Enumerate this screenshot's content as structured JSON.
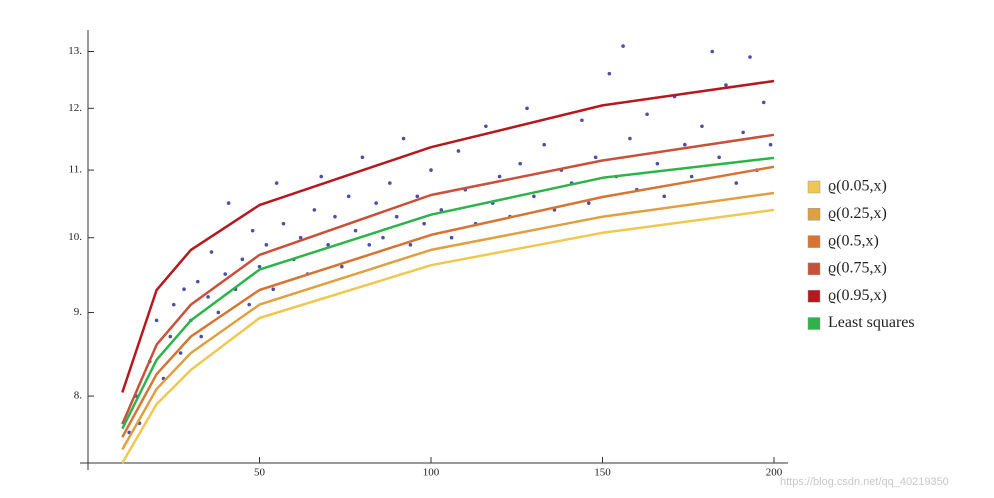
{
  "chart_data": {
    "type": "scatter",
    "log_y": true,
    "xlim": [
      0,
      200
    ],
    "ylim": [
      7.28,
      13.4
    ],
    "xticks": [
      50,
      100,
      150,
      200
    ],
    "yticks": [
      {
        "value": 8,
        "label": "8."
      },
      {
        "value": 9,
        "label": "9."
      },
      {
        "value": 10,
        "label": "10."
      },
      {
        "value": 11,
        "label": "11."
      },
      {
        "value": 12,
        "label": "12."
      },
      {
        "value": 13,
        "label": "13."
      }
    ],
    "points": {
      "color": "#4b4fa8",
      "x": [
        12,
        14,
        15,
        18,
        20,
        22,
        24,
        25,
        27,
        28,
        30,
        32,
        33,
        35,
        36,
        38,
        40,
        41,
        43,
        45,
        47,
        48,
        50,
        52,
        54,
        55,
        57,
        60,
        62,
        64,
        66,
        68,
        70,
        72,
        74,
        76,
        78,
        80,
        82,
        84,
        86,
        88,
        90,
        92,
        94,
        96,
        98,
        100,
        103,
        106,
        108,
        110,
        113,
        116,
        118,
        120,
        123,
        126,
        128,
        130,
        133,
        136,
        138,
        141,
        144,
        146,
        148,
        152,
        154,
        156,
        158,
        160,
        163,
        166,
        168,
        171,
        174,
        176,
        179,
        182,
        184,
        186,
        189,
        191,
        193,
        195,
        197,
        199
      ],
      "y": [
        7.6,
        8.0,
        7.7,
        8.4,
        8.9,
        8.2,
        8.7,
        9.1,
        8.5,
        9.3,
        8.9,
        9.4,
        8.7,
        9.2,
        9.8,
        9.0,
        9.5,
        10.5,
        9.3,
        9.7,
        9.1,
        10.1,
        9.6,
        9.9,
        9.3,
        10.8,
        10.2,
        9.7,
        10.0,
        9.5,
        10.4,
        10.9,
        9.9,
        10.3,
        9.6,
        10.6,
        10.1,
        11.2,
        9.9,
        10.5,
        10.0,
        10.8,
        10.3,
        11.5,
        9.9,
        10.6,
        10.2,
        11.0,
        10.4,
        10.0,
        11.3,
        10.7,
        10.2,
        11.7,
        10.5,
        10.9,
        10.3,
        11.1,
        12.0,
        10.6,
        11.4,
        10.4,
        11.0,
        10.8,
        11.8,
        10.5,
        11.2,
        12.6,
        10.9,
        13.1,
        11.5,
        10.7,
        11.9,
        11.1,
        10.6,
        12.2,
        11.4,
        10.9,
        11.7,
        13.0,
        11.2,
        12.4,
        10.8,
        11.6,
        12.9,
        11.0,
        12.1,
        11.4
      ]
    },
    "x": [
      10,
      20,
      30,
      50,
      100,
      150,
      200
    ],
    "series": [
      {
        "name": "ϱ(0.05,x)",
        "color": "#f0c850",
        "values": [
          7.28,
          7.91,
          8.3,
          8.93,
          9.62,
          10.07,
          10.4
        ]
      },
      {
        "name": "ϱ(0.25,x)",
        "color": "#e0a040",
        "values": [
          7.42,
          8.08,
          8.5,
          9.1,
          9.83,
          10.3,
          10.65
        ]
      },
      {
        "name": "ϱ(0.5,x)",
        "color": "#d67434",
        "values": [
          7.55,
          8.25,
          8.7,
          9.29,
          10.04,
          10.59,
          11.05
        ]
      },
      {
        "name": "ϱ(0.75,x)",
        "color": "#c9503a",
        "values": [
          7.69,
          8.6,
          9.1,
          9.76,
          10.62,
          11.15,
          11.56
        ]
      },
      {
        "name": "ϱ(0.95,x)",
        "color": "#b3191f",
        "values": [
          8.04,
          9.29,
          9.83,
          10.47,
          11.36,
          12.05,
          12.47
        ]
      },
      {
        "name": "Least squares",
        "color": "#2eb34a",
        "values": [
          7.64,
          8.42,
          8.9,
          9.56,
          10.33,
          10.88,
          11.19
        ]
      }
    ],
    "watermark": "https://blog.csdn.net/qq_40219350"
  }
}
